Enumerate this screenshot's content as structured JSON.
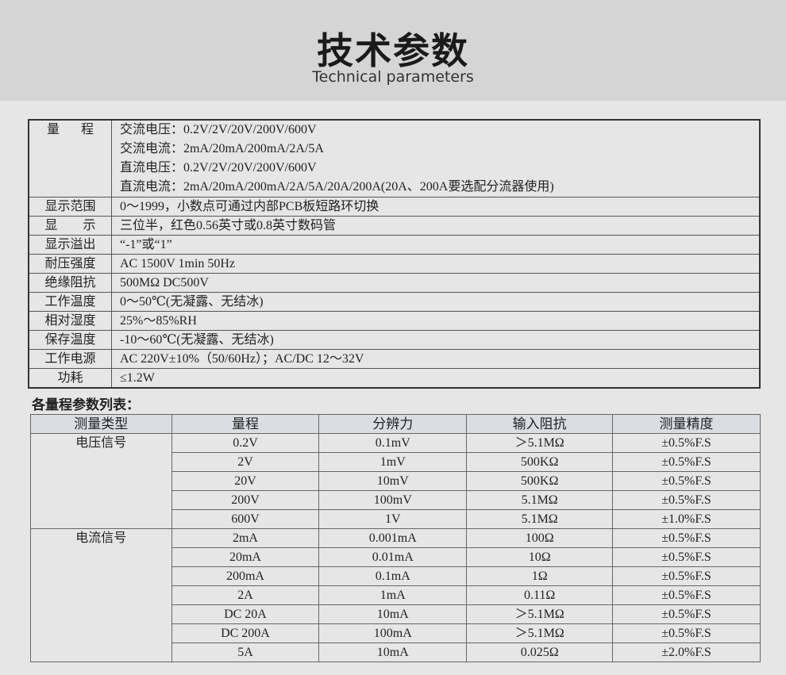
{
  "header": {
    "title": "技术参数",
    "subtitle": "Technical parameters"
  },
  "specs": {
    "range_label": [
      "量",
      "程"
    ],
    "range_lines": [
      "交流电压：0.2V/2V/20V/200V/600V",
      "交流电流：2mA/20mA/200mA/2A/5A",
      "直流电压：0.2V/2V/20V/200V/600V",
      "直流电流：2mA/20mA/200mA/2A/5A/20A/200A(20A、200A要选配分流器使用)"
    ],
    "rows": [
      {
        "label": "显示范围",
        "value": "0～1999，小数点可通过内部PCB板短路环切换"
      },
      {
        "label": "显　　示",
        "value": "三位半，红色0.56英寸或0.8英寸数码管"
      },
      {
        "label": "显示溢出",
        "value": "“-1”或“1”"
      },
      {
        "label": "耐压强度",
        "value": "AC 1500V 1min  50Hz"
      },
      {
        "label": "绝缘阻抗",
        "value": "500MΩ  DC500V"
      },
      {
        "label": "工作温度",
        "value": "0～50℃(无凝露、无结冰)"
      },
      {
        "label": "相对湿度",
        "value": "25%～85%RH"
      },
      {
        "label": "保存温度",
        "value": "-10～60℃(无凝露、无结冰)"
      },
      {
        "label": "工作电源",
        "value": "AC 220V±10%（50/60Hz）；AC/DC 12～32V"
      },
      {
        "label": "功耗",
        "value": "≤1.2W"
      }
    ]
  },
  "param_table": {
    "title": "各量程参数列表：",
    "headers": [
      "测量类型",
      "量程",
      "分辨力",
      "输入阻抗",
      "测量精度"
    ],
    "groups": [
      {
        "type": "电压信号",
        "rows": [
          [
            "0.2V",
            "0.1mV",
            "＞5.1MΩ",
            "±0.5%F.S"
          ],
          [
            "2V",
            "1mV",
            "500KΩ",
            "±0.5%F.S"
          ],
          [
            "20V",
            "10mV",
            "500KΩ",
            "±0.5%F.S"
          ],
          [
            "200V",
            "100mV",
            "5.1MΩ",
            "±0.5%F.S"
          ],
          [
            "600V",
            "1V",
            "5.1MΩ",
            "±1.0%F.S"
          ]
        ]
      },
      {
        "type": "电流信号",
        "rows": [
          [
            "2mA",
            "0.001mA",
            "100Ω",
            "±0.5%F.S"
          ],
          [
            "20mA",
            "0.01mA",
            "10Ω",
            "±0.5%F.S"
          ],
          [
            "200mA",
            "0.1mA",
            "1Ω",
            "±0.5%F.S"
          ],
          [
            "2A",
            "1mA",
            "0.11Ω",
            "±0.5%F.S"
          ],
          [
            "DC 20A",
            "10mA",
            "＞5.1MΩ",
            "±0.5%F.S"
          ],
          [
            "DC 200A",
            "100mA",
            "＞5.1MΩ",
            "±0.5%F.S"
          ],
          [
            "5A",
            "10mA",
            "0.025Ω",
            "±2.0%F.S"
          ]
        ]
      }
    ]
  }
}
